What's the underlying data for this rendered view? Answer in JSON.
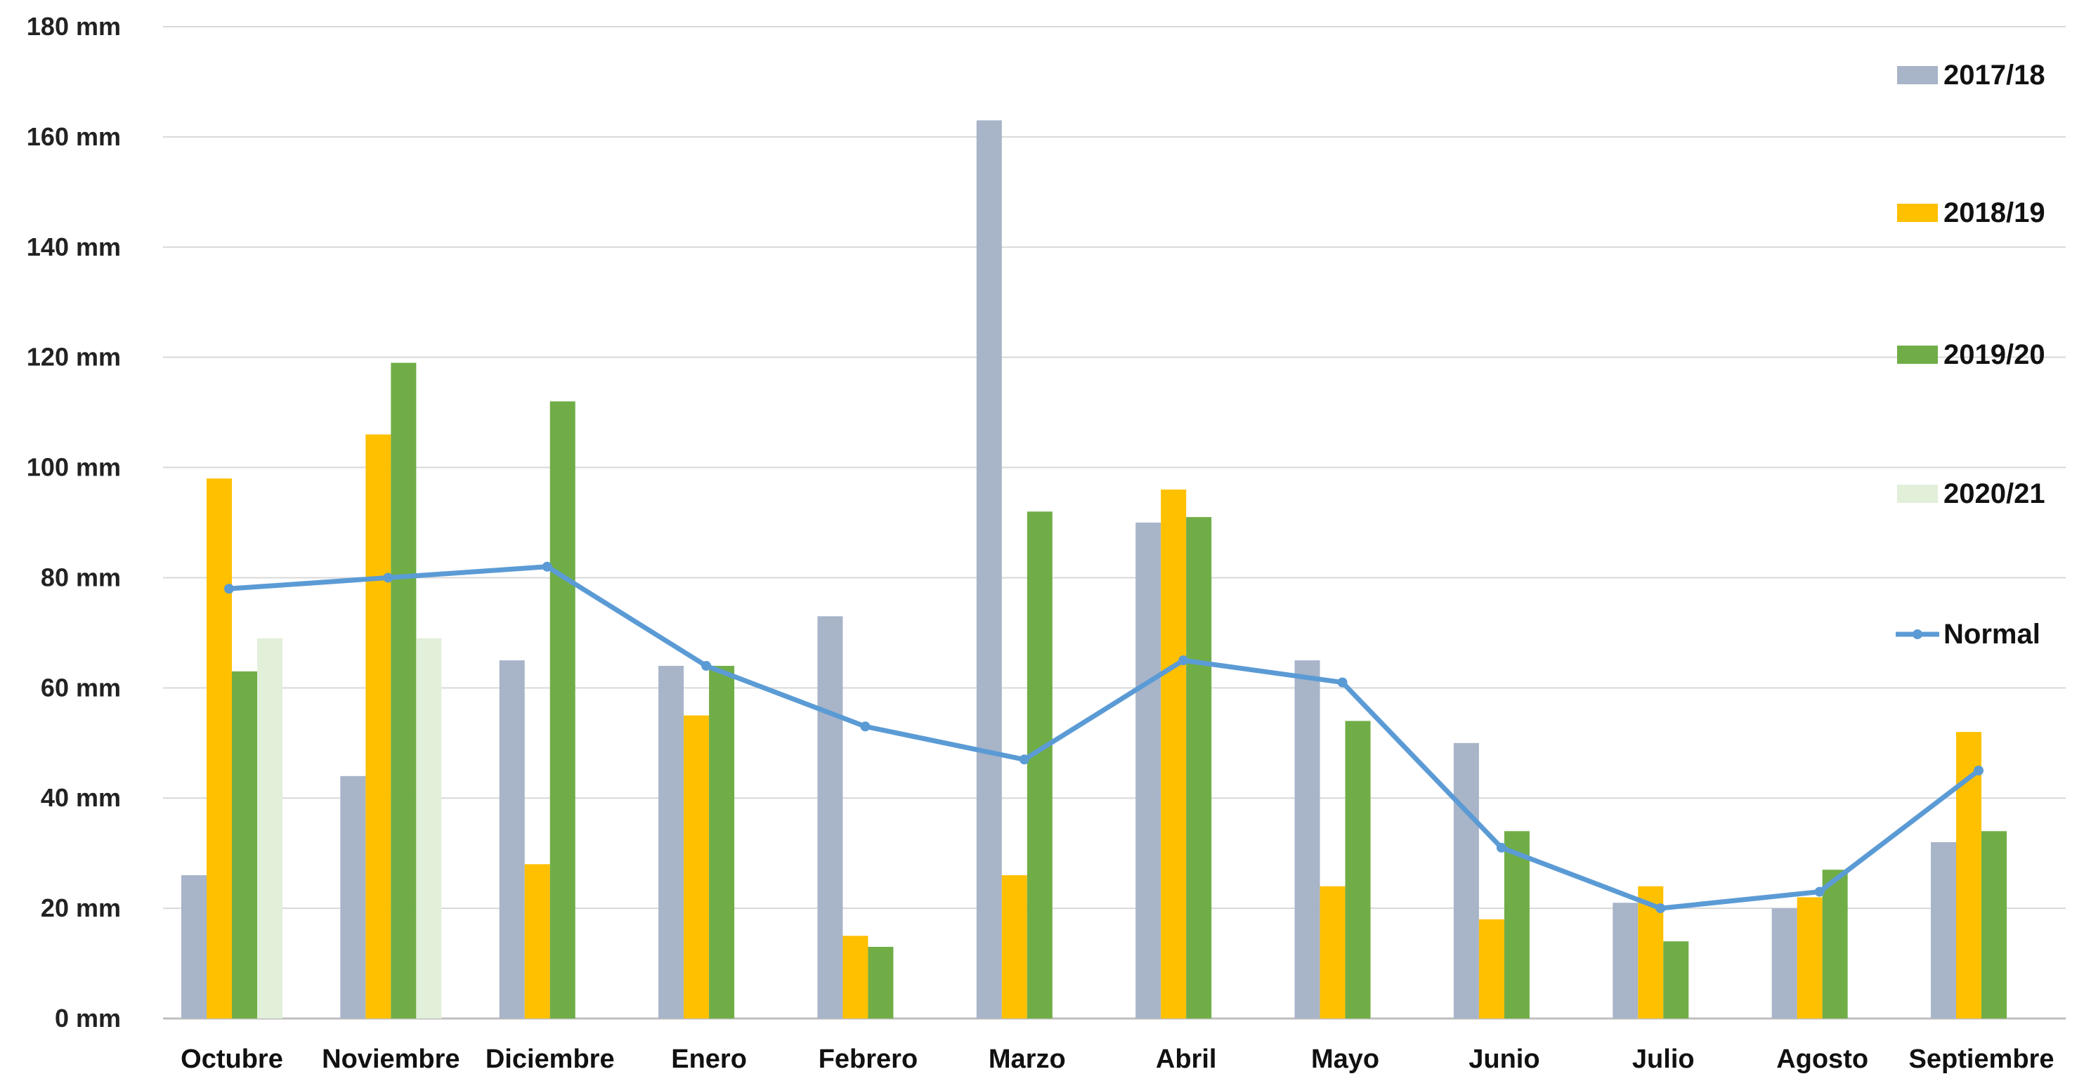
{
  "chart_data": {
    "type": "bar",
    "title": "",
    "xlabel": "",
    "ylabel": "",
    "ylim": [
      0,
      180
    ],
    "yticks": [
      0,
      20,
      40,
      60,
      80,
      100,
      120,
      140,
      160,
      180
    ],
    "ytick_labels": [
      "0 mm",
      "20 mm",
      "40 mm",
      "60 mm",
      "80 mm",
      "100 mm",
      "120 mm",
      "140 mm",
      "160 mm",
      "180 mm"
    ],
    "grid": true,
    "legend": "right",
    "categories": [
      "Octubre",
      "Noviembre",
      "Diciembre",
      "Enero",
      "Febrero",
      "Marzo",
      "Abril",
      "Mayo",
      "Junio",
      "Julio",
      "Agosto",
      "Septiembre"
    ],
    "series": [
      {
        "name": "2017/18",
        "type": "bar",
        "color": "#a8b4c8",
        "values": [
          26,
          44,
          65,
          64,
          73,
          163,
          90,
          65,
          50,
          21,
          20,
          32
        ]
      },
      {
        "name": "2018/19",
        "type": "bar",
        "color": "#ffc000",
        "values": [
          98,
          106,
          28,
          55,
          15,
          26,
          96,
          24,
          18,
          24,
          22,
          52
        ]
      },
      {
        "name": "2019/20",
        "type": "bar",
        "color": "#70ad47",
        "values": [
          63,
          119,
          112,
          64,
          13,
          92,
          91,
          54,
          34,
          14,
          27,
          34
        ]
      },
      {
        "name": "2020/21",
        "type": "bar",
        "color": "#e2efd9",
        "values": [
          69,
          69,
          null,
          null,
          null,
          null,
          null,
          null,
          null,
          null,
          null,
          null
        ]
      },
      {
        "name": "Normal",
        "type": "line",
        "color": "#5b9bd5",
        "values": [
          78,
          80,
          82,
          64,
          53,
          47,
          65,
          61,
          31,
          20,
          23,
          45
        ]
      }
    ]
  }
}
